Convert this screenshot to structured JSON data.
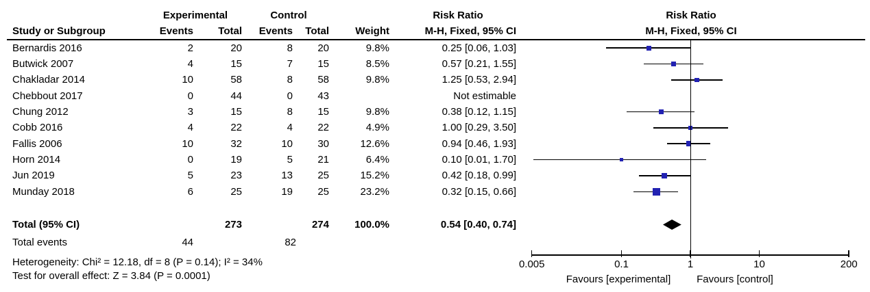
{
  "header": {
    "group_experimental": "Experimental",
    "group_control": "Control",
    "risk_ratio_text_col": "Risk Ratio",
    "risk_ratio_plot_col": "Risk Ratio",
    "study_col": "Study or Subgroup",
    "events_col": "Events",
    "total_col": "Total",
    "events2_col": "Events",
    "total2_col": "Total",
    "weight_col": "Weight",
    "mh_text_col": "M-H, Fixed, 95% CI",
    "mh_plot_col": "M-H, Fixed, 95% CI"
  },
  "footer": {
    "total_label": "Total (95% CI)",
    "total_exp_n": "273",
    "total_ctrl_n": "274",
    "total_weight": "100.0%",
    "total_ci_text": "0.54 [0.40, 0.74]",
    "total_events_label": "Total events",
    "total_events_exp": "44",
    "total_events_ctrl": "82",
    "heterogeneity": "Heterogeneity: Chi² = 12.18, df = 8 (P = 0.14); I² = 34%",
    "overall_effect": "Test for overall effect: Z = 3.84 (P = 0.0001)"
  },
  "colors": {
    "marker": "#2222b2",
    "diamond": "#000000",
    "line": "#000000"
  },
  "chart_data": {
    "type": "forest",
    "effect_measure": "Risk Ratio",
    "method": "M-H, Fixed, 95% CI",
    "x_scale": "log",
    "x_ticks": [
      0.005,
      0.1,
      1,
      10,
      200
    ],
    "xlim": [
      0.005,
      200
    ],
    "null_line": 1,
    "favours_left": "Favours [experimental]",
    "favours_right": "Favours [control]",
    "studies": [
      {
        "name": "Bernardis 2016",
        "exp_events": "2",
        "exp_total": "20",
        "ctrl_events": "8",
        "ctrl_total": "20",
        "weight_text": "9.8%",
        "weight": 9.8,
        "ci_text": "0.25 [0.06, 1.03]",
        "rr": 0.25,
        "low": 0.06,
        "high": 1.03,
        "estimable": true
      },
      {
        "name": "Butwick 2007",
        "exp_events": "4",
        "exp_total": "15",
        "ctrl_events": "7",
        "ctrl_total": "15",
        "weight_text": "8.5%",
        "weight": 8.5,
        "ci_text": "0.57 [0.21, 1.55]",
        "rr": 0.57,
        "low": 0.21,
        "high": 1.55,
        "estimable": true
      },
      {
        "name": "Chakladar 2014",
        "exp_events": "10",
        "exp_total": "58",
        "ctrl_events": "8",
        "ctrl_total": "58",
        "weight_text": "9.8%",
        "weight": 9.8,
        "ci_text": "1.25 [0.53, 2.94]",
        "rr": 1.25,
        "low": 0.53,
        "high": 2.94,
        "estimable": true
      },
      {
        "name": "Chebbout 2017",
        "exp_events": "0",
        "exp_total": "44",
        "ctrl_events": "0",
        "ctrl_total": "43",
        "weight_text": "",
        "weight": 0,
        "ci_text": "Not estimable",
        "rr": null,
        "low": null,
        "high": null,
        "estimable": false
      },
      {
        "name": "Chung 2012",
        "exp_events": "3",
        "exp_total": "15",
        "ctrl_events": "8",
        "ctrl_total": "15",
        "weight_text": "9.8%",
        "weight": 9.8,
        "ci_text": "0.38 [0.12, 1.15]",
        "rr": 0.38,
        "low": 0.12,
        "high": 1.15,
        "estimable": true
      },
      {
        "name": "Cobb 2016",
        "exp_events": "4",
        "exp_total": "22",
        "ctrl_events": "4",
        "ctrl_total": "22",
        "weight_text": "4.9%",
        "weight": 4.9,
        "ci_text": "1.00 [0.29, 3.50]",
        "rr": 1.0,
        "low": 0.29,
        "high": 3.5,
        "estimable": true
      },
      {
        "name": "Fallis 2006",
        "exp_events": "10",
        "exp_total": "32",
        "ctrl_events": "10",
        "ctrl_total": "30",
        "weight_text": "12.6%",
        "weight": 12.6,
        "ci_text": "0.94 [0.46, 1.93]",
        "rr": 0.94,
        "low": 0.46,
        "high": 1.93,
        "estimable": true
      },
      {
        "name": "Horn 2014",
        "exp_events": "0",
        "exp_total": "19",
        "ctrl_events": "5",
        "ctrl_total": "21",
        "weight_text": "6.4%",
        "weight": 6.4,
        "ci_text": "0.10 [0.01, 1.70]",
        "rr": 0.1,
        "low": 0.01,
        "high": 1.7,
        "plot_low": 0.0053,
        "estimable": true
      },
      {
        "name": "Jun 2019",
        "exp_events": "5",
        "exp_total": "23",
        "ctrl_events": "13",
        "ctrl_total": "25",
        "weight_text": "15.2%",
        "weight": 15.2,
        "ci_text": "0.42 [0.18, 0.99]",
        "rr": 0.42,
        "low": 0.18,
        "high": 0.99,
        "estimable": true
      },
      {
        "name": "Munday 2018",
        "exp_events": "6",
        "exp_total": "25",
        "ctrl_events": "19",
        "ctrl_total": "25",
        "weight_text": "23.2%",
        "weight": 23.2,
        "ci_text": "0.32 [0.15, 0.66]",
        "rr": 0.32,
        "low": 0.15,
        "high": 0.66,
        "estimable": true
      }
    ],
    "total": {
      "label": "Total (95% CI)",
      "rr": 0.54,
      "low": 0.4,
      "high": 0.74,
      "weight": "100.0%",
      "ci_text": "0.54 [0.40, 0.74]"
    }
  }
}
